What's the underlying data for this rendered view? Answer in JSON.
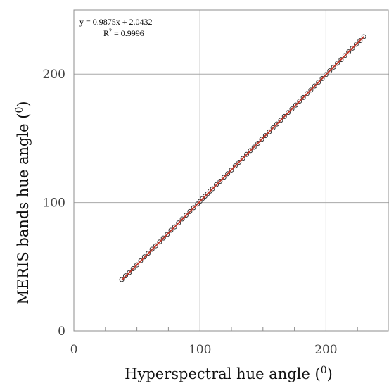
{
  "chart_data": {
    "type": "scatter",
    "title": "",
    "xlabel": "Hyperspectral hue angle (0)",
    "ylabel": "MERIS bands hue angle (0)",
    "xlabel_text": "Hyperspectral hue angle (",
    "ylabel_text": "MERIS bands hue angle (",
    "label_super": "0",
    "label_close": ")",
    "xlim": [
      0,
      250
    ],
    "ylim": [
      0,
      250
    ],
    "xticks": [
      0,
      100,
      200
    ],
    "yticks": [
      0,
      100,
      200
    ],
    "xtick_labels": [
      "0",
      "100",
      "200"
    ],
    "ytick_labels": [
      "0",
      "100",
      "200"
    ],
    "minor_xticks": [
      25,
      50,
      75,
      125,
      150,
      175,
      225
    ],
    "grid": true,
    "legend": "none",
    "annotation": {
      "equation": "y = 0.9875x + 2.0432",
      "r2_prefix": "R",
      "r2_super": "2",
      "r2_value": " = 0.9996"
    },
    "fit_line": {
      "slope": 0.9875,
      "intercept": 2.0432,
      "x_range": [
        38,
        230
      ],
      "color": "#c0392b"
    },
    "series": [
      {
        "marker": "open-circle",
        "color": "#333333",
        "x": [
          38,
          41,
          44,
          47,
          50,
          53,
          56,
          59,
          62,
          65,
          68,
          71,
          74,
          77,
          80,
          83,
          86,
          89,
          92,
          95,
          98,
          100,
          102,
          104,
          106,
          108,
          110,
          113,
          116,
          119,
          122,
          125,
          128,
          131,
          134,
          137,
          140,
          143,
          146,
          149,
          152,
          155,
          158,
          161,
          164,
          167,
          170,
          173,
          176,
          179,
          182,
          185,
          188,
          191,
          194,
          197,
          200,
          203,
          206,
          209,
          212,
          215,
          218,
          221,
          224,
          227,
          230
        ],
        "y": [
          40,
          43,
          45.5,
          48.5,
          51.5,
          54.6,
          57.7,
          60.5,
          63.6,
          66.3,
          69.2,
          72.3,
          75.1,
          78.4,
          81.1,
          84.1,
          87.2,
          90.1,
          93.0,
          96.0,
          98.8,
          100.9,
          103.1,
          104.9,
          106.8,
          108.9,
          110.7,
          113.9,
          116.5,
          119.6,
          122.4,
          125.3,
          128.5,
          131.3,
          134.3,
          137.5,
          140.4,
          143.1,
          146.1,
          149.2,
          152.1,
          155.0,
          158.2,
          161.1,
          164.0,
          167.0,
          170.1,
          172.9,
          175.9,
          178.9,
          181.8,
          184.8,
          187.6,
          190.8,
          193.7,
          196.6,
          199.6,
          202.5,
          205.4,
          208.4,
          211.3,
          214.4,
          217.3,
          220.2,
          223.2,
          226.1,
          229.2
        ]
      }
    ]
  }
}
